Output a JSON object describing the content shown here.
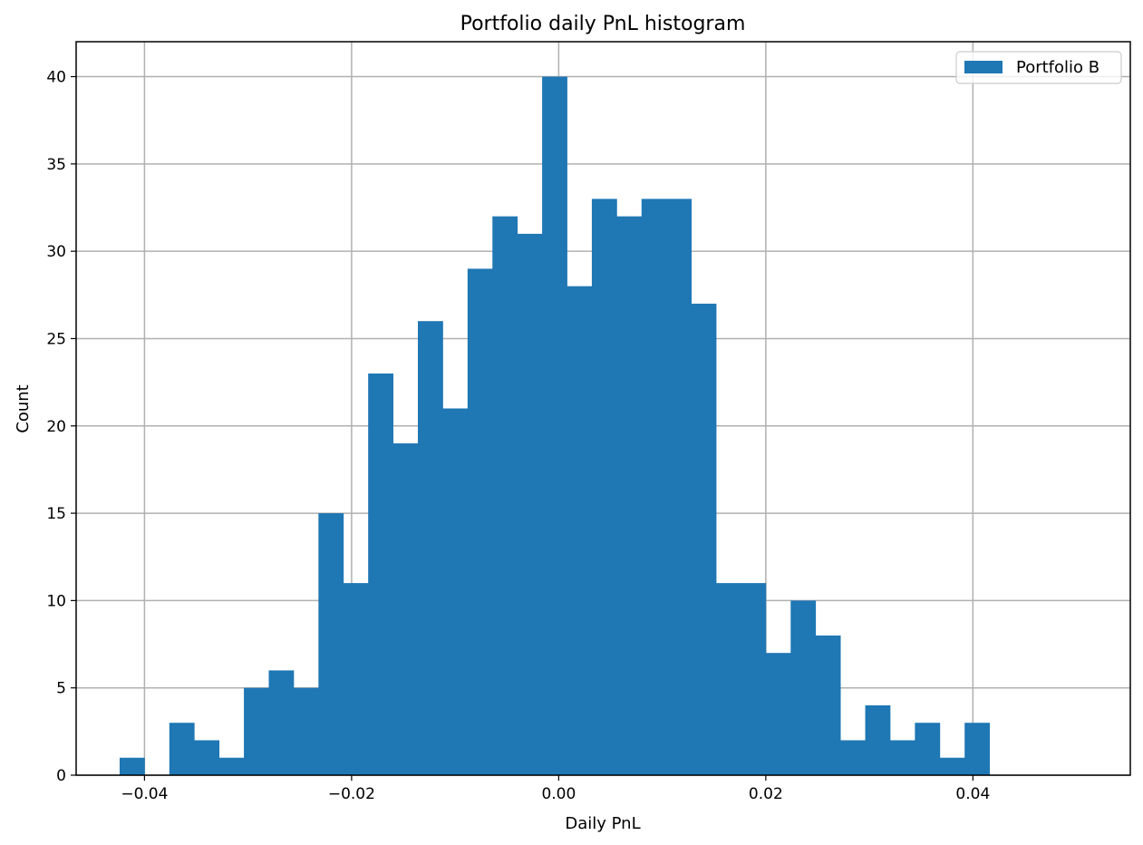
{
  "chart_data": {
    "type": "bar",
    "title": "Portfolio daily PnL histogram",
    "xlabel": "Daily PnL",
    "ylabel": "Count",
    "xlim": [
      -0.0466,
      0.0552
    ],
    "ylim": [
      0,
      42
    ],
    "xticks": [
      -0.04,
      -0.02,
      0.0,
      0.02,
      0.04
    ],
    "xtick_labels": [
      "−0.04",
      "−0.02",
      "0.00",
      "0.02",
      "0.04"
    ],
    "yticks": [
      0,
      5,
      10,
      15,
      20,
      25,
      30,
      35,
      40
    ],
    "ytick_labels": [
      "0",
      "5",
      "10",
      "15",
      "20",
      "25",
      "30",
      "35",
      "40"
    ],
    "grid": true,
    "legend": {
      "position": "top-right",
      "entries": [
        "Portfolio B"
      ]
    },
    "series": [
      {
        "name": "Portfolio B",
        "color": "#1f77b4",
        "bin_edges": [
          -0.0424,
          -0.04,
          -0.0376,
          -0.0352,
          -0.0328,
          -0.0304,
          -0.028,
          -0.0256,
          -0.0232,
          -0.0208,
          -0.0184,
          -0.016,
          -0.0136,
          -0.0112,
          -0.0088,
          -0.0064,
          -0.004,
          -0.0016,
          0.0008,
          0.0032,
          0.0056,
          0.008,
          0.0104,
          0.0128,
          0.0152,
          0.0176,
          0.02,
          0.0224,
          0.0248,
          0.0272,
          0.0296,
          0.032,
          0.0344,
          0.0368,
          0.0392,
          0.0416
        ],
        "counts": [
          1,
          0,
          3,
          2,
          1,
          5,
          6,
          5,
          15,
          11,
          23,
          19,
          26,
          21,
          29,
          32,
          31,
          40,
          28,
          33,
          32,
          33,
          33,
          27,
          11,
          11,
          7,
          10,
          8,
          2,
          4,
          2,
          3,
          1,
          3
        ]
      }
    ]
  }
}
